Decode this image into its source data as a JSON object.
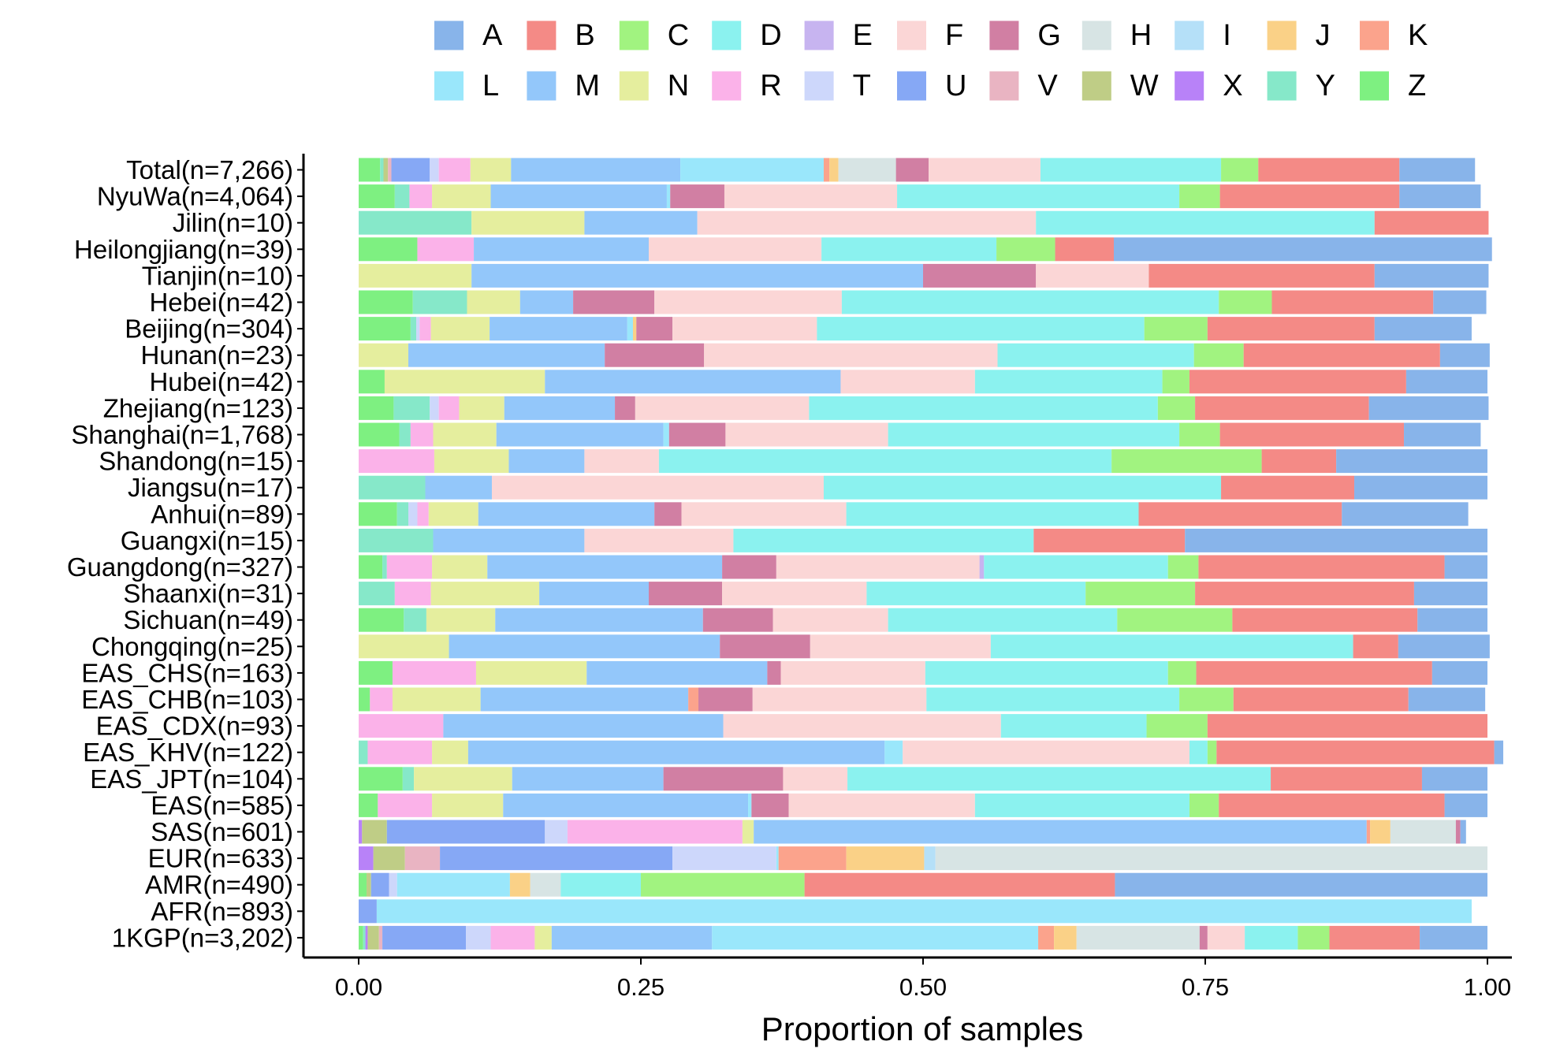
{
  "chart_data": {
    "type": "bar",
    "orientation": "horizontal",
    "stacked": true,
    "xlabel": "Proportion of samples",
    "xlim": [
      0,
      1
    ],
    "x_ticks": [
      "0.00",
      "0.25",
      "0.50",
      "0.75",
      "1.00"
    ],
    "legend_position": "top",
    "categories": [
      "Total(n=7,266)",
      "NyuWa(n=4,064)",
      "Jilin(n=10)",
      "Heilongjiang(n=39)",
      "Tianjin(n=10)",
      "Hebei(n=42)",
      "Beijing(n=304)",
      "Hunan(n=23)",
      "Hubei(n=42)",
      "Zhejiang(n=123)",
      "Shanghai(n=1,768)",
      "Shandong(n=15)",
      "Jiangsu(n=17)",
      "Anhui(n=89)",
      "Guangxi(n=15)",
      "Guangdong(n=327)",
      "Shaanxi(n=31)",
      "Sichuan(n=49)",
      "Chongqing(n=25)",
      "EAS_CHS(n=163)",
      "EAS_CHB(n=103)",
      "EAS_CDX(n=93)",
      "EAS_KHV(n=122)",
      "EAS_JPT(n=104)",
      "EAS(n=585)",
      "SAS(n=601)",
      "EUR(n=633)",
      "AMR(n=490)",
      "AFR(n=893)",
      "1KGP(n=3,202)"
    ],
    "stack_order": [
      "Z",
      "Y",
      "X",
      "W",
      "V",
      "U",
      "T",
      "R",
      "N",
      "M",
      "L",
      "K",
      "J",
      "I",
      "H",
      "G",
      "F",
      "E",
      "D",
      "C",
      "B",
      "A"
    ],
    "series": [
      {
        "name": "A",
        "color": "#88b4ea",
        "values": [
          0.067,
          0.072,
          0,
          0.335,
          0.101,
          0.047,
          0.086,
          0.044,
          0.072,
          0.106,
          0.068,
          0.134,
          0.118,
          0.112,
          0.268,
          0.038,
          0.065,
          0.062,
          0.081,
          0.049,
          0.068,
          0,
          0.008,
          0.058,
          0.038,
          0.005,
          0,
          0.33,
          0,
          0.06
        ]
      },
      {
        "name": "B",
        "color": "#f48a86",
        "values": [
          0.125,
          0.159,
          0.101,
          0.052,
          0.2,
          0.143,
          0.148,
          0.174,
          0.192,
          0.154,
          0.163,
          0.066,
          0.118,
          0.18,
          0.134,
          0.218,
          0.194,
          0.164,
          0.04,
          0.209,
          0.155,
          0.248,
          0.246,
          0.134,
          0.2,
          0,
          0,
          0.275,
          0,
          0.08
        ]
      },
      {
        "name": "C",
        "color": "#a1f380",
        "values": [
          0.033,
          0.036,
          0,
          0.052,
          0,
          0.047,
          0.056,
          0.044,
          0.024,
          0.033,
          0.036,
          0.133,
          0,
          0,
          0,
          0.027,
          0.097,
          0.102,
          0,
          0.025,
          0.048,
          0.054,
          0.008,
          0,
          0.026,
          0,
          0,
          0.145,
          0,
          0.028
        ]
      },
      {
        "name": "D",
        "color": "#8bf2ef",
        "values": [
          0.16,
          0.25,
          0.3,
          0.155,
          0,
          0.334,
          0.29,
          0.174,
          0.166,
          0.309,
          0.258,
          0.401,
          0.352,
          0.259,
          0.266,
          0.163,
          0.194,
          0.203,
          0.321,
          0.215,
          0.224,
          0.129,
          0.016,
          0.375,
          0.19,
          0,
          0,
          0.071,
          0,
          0.047
        ]
      },
      {
        "name": "E",
        "color": "#c7b4f0",
        "values": [
          0,
          0,
          0,
          0,
          0,
          0,
          0,
          0,
          0,
          0,
          0,
          0,
          0,
          0,
          0,
          0.004,
          0,
          0,
          0,
          0,
          0,
          0,
          0,
          0,
          0,
          0,
          0,
          0,
          0,
          0
        ]
      },
      {
        "name": "F",
        "color": "#fbd6d6",
        "values": [
          0.099,
          0.153,
          0.3,
          0.153,
          0.1,
          0.166,
          0.128,
          0.26,
          0.119,
          0.154,
          0.144,
          0.066,
          0.294,
          0.146,
          0.132,
          0.18,
          0.128,
          0.102,
          0.16,
          0.128,
          0.154,
          0.246,
          0.254,
          0.057,
          0.165,
          0,
          0,
          0,
          0,
          0.033
        ]
      },
      {
        "name": "G",
        "color": "#d17fa3",
        "values": [
          0.029,
          0.048,
          0,
          0,
          0.1,
          0.072,
          0.032,
          0.088,
          0,
          0.018,
          0.05,
          0,
          0,
          0.024,
          0,
          0.048,
          0.065,
          0.062,
          0.08,
          0.012,
          0.048,
          0,
          0,
          0.106,
          0.033,
          0.004,
          0,
          0,
          0,
          0.007
        ]
      },
      {
        "name": "H",
        "color": "#d7e4e4",
        "values": [
          0.051,
          0,
          0,
          0,
          0,
          0,
          0,
          0,
          0,
          0,
          0,
          0,
          0,
          0,
          0,
          0,
          0,
          0,
          0,
          0,
          0,
          0,
          0,
          0,
          0,
          0.058,
          0.489,
          0.027,
          0,
          0.109
        ]
      },
      {
        "name": "I",
        "color": "#b5e0f8",
        "values": [
          0,
          0,
          0,
          0,
          0,
          0,
          0,
          0,
          0,
          0,
          0,
          0,
          0,
          0,
          0,
          0,
          0,
          0,
          0,
          0,
          0,
          0,
          0,
          0,
          0,
          0,
          0.01,
          0,
          0,
          0
        ]
      },
      {
        "name": "J",
        "color": "#fad187",
        "values": [
          0.008,
          0,
          0,
          0,
          0,
          0,
          0.003,
          0,
          0,
          0,
          0,
          0,
          0,
          0,
          0,
          0,
          0,
          0,
          0,
          0,
          0,
          0,
          0,
          0,
          0,
          0.018,
          0.069,
          0.018,
          0,
          0.02
        ]
      },
      {
        "name": "K",
        "color": "#fba38c",
        "values": [
          0.005,
          0,
          0,
          0,
          0,
          0,
          0,
          0,
          0,
          0,
          0,
          0,
          0,
          0,
          0,
          0,
          0,
          0,
          0,
          0,
          0.009,
          0,
          0,
          0,
          0,
          0.003,
          0.06,
          0,
          0,
          0.014
        ]
      },
      {
        "name": "L",
        "color": "#9ae7fb",
        "values": [
          0.127,
          0.003,
          0,
          0,
          0,
          0,
          0.005,
          0,
          0,
          0,
          0.005,
          0,
          0,
          0,
          0,
          0,
          0,
          0,
          0,
          0,
          0,
          0,
          0.016,
          0,
          0.003,
          0,
          0.002,
          0.1,
          0.97,
          0.289
        ]
      },
      {
        "name": "M",
        "color": "#93c7fa",
        "values": [
          0.15,
          0.156,
          0.1,
          0.155,
          0.4,
          0.047,
          0.122,
          0.174,
          0.262,
          0.098,
          0.148,
          0.067,
          0.059,
          0.156,
          0.134,
          0.208,
          0.097,
          0.184,
          0.24,
          0.16,
          0.184,
          0.248,
          0.369,
          0.134,
          0.217,
          0.543,
          0,
          0,
          0,
          0.142
        ]
      },
      {
        "name": "N",
        "color": "#e5ee9e",
        "values": [
          0.036,
          0.052,
          0.1,
          0,
          0.1,
          0.047,
          0.052,
          0.044,
          0.142,
          0.04,
          0.056,
          0.066,
          0,
          0.044,
          0,
          0.049,
          0.096,
          0.061,
          0.08,
          0.098,
          0.078,
          0,
          0.032,
          0.087,
          0.063,
          0.01,
          0,
          0,
          0,
          0.015
        ]
      },
      {
        "name": "R",
        "color": "#fbb2e9",
        "values": [
          0.028,
          0.02,
          0,
          0.05,
          0,
          0,
          0.01,
          0,
          0,
          0.018,
          0.02,
          0.067,
          0,
          0.01,
          0,
          0.04,
          0.032,
          0,
          0,
          0.074,
          0.02,
          0.075,
          0.057,
          0,
          0.048,
          0.155,
          0,
          0,
          0,
          0.039
        ]
      },
      {
        "name": "T",
        "color": "#cdd7fb",
        "values": [
          0.008,
          0,
          0,
          0,
          0,
          0,
          0.003,
          0,
          0,
          0.008,
          0,
          0,
          0,
          0.008,
          0,
          0,
          0,
          0,
          0,
          0,
          0,
          0,
          0,
          0,
          0,
          0.02,
          0.092,
          0.007,
          0,
          0.022
        ]
      },
      {
        "name": "U",
        "color": "#86a8f5",
        "values": [
          0.034,
          0,
          0,
          0,
          0,
          0,
          0,
          0,
          0,
          0,
          0,
          0,
          0,
          0,
          0,
          0,
          0,
          0,
          0,
          0,
          0,
          0,
          0,
          0,
          0,
          0.14,
          0.206,
          0.016,
          0.016,
          0.074
        ]
      },
      {
        "name": "V",
        "color": "#e9b4c2",
        "values": [
          0.003,
          0,
          0,
          0,
          0,
          0,
          0,
          0,
          0,
          0,
          0,
          0,
          0,
          0,
          0,
          0,
          0,
          0,
          0,
          0,
          0,
          0,
          0,
          0,
          0,
          0,
          0.031,
          0,
          0,
          0.003
        ]
      },
      {
        "name": "W",
        "color": "#bfcd86",
        "values": [
          0.004,
          0,
          0,
          0,
          0,
          0,
          0,
          0,
          0,
          0,
          0,
          0,
          0,
          0,
          0,
          0,
          0,
          0,
          0,
          0,
          0,
          0,
          0,
          0,
          0,
          0.022,
          0.028,
          0.004,
          0,
          0.01
        ]
      },
      {
        "name": "X",
        "color": "#b882f8",
        "values": [
          0,
          0,
          0,
          0,
          0,
          0,
          0,
          0,
          0,
          0,
          0,
          0,
          0,
          0,
          0,
          0,
          0,
          0,
          0,
          0,
          0,
          0,
          0,
          0,
          0,
          0.003,
          0.013,
          0,
          0,
          0.002
        ]
      },
      {
        "name": "Y",
        "color": "#86e8c9",
        "values": [
          0.003,
          0.013,
          0.1,
          0,
          0,
          0.048,
          0.005,
          0,
          0,
          0.032,
          0.01,
          0,
          0.059,
          0.01,
          0.066,
          0.004,
          0.032,
          0.02,
          0,
          0,
          0,
          0,
          0.008,
          0.01,
          0,
          0,
          0,
          0,
          0,
          0.002
        ]
      },
      {
        "name": "Z",
        "color": "#7ef081",
        "values": [
          0.019,
          0.032,
          0,
          0.052,
          0,
          0.048,
          0.046,
          0,
          0.023,
          0.031,
          0.036,
          0,
          0,
          0.034,
          0,
          0.021,
          0,
          0.04,
          0,
          0.03,
          0.01,
          0,
          0,
          0.039,
          0.017,
          0,
          0,
          0.007,
          0,
          0.004
        ]
      }
    ]
  }
}
